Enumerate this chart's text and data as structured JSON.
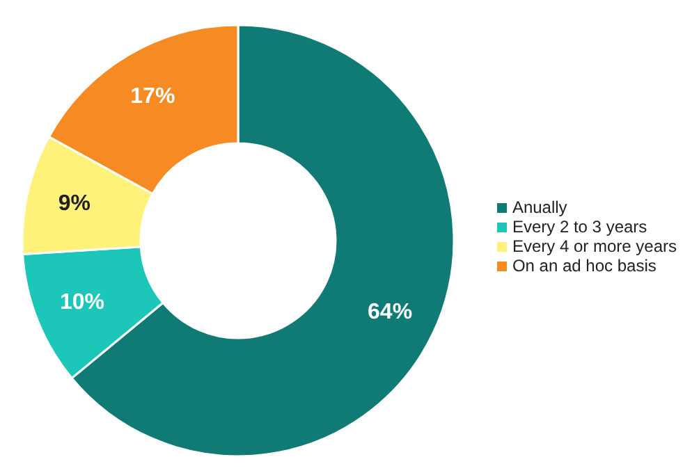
{
  "chart_data": {
    "type": "donut",
    "categories": [
      "Anually",
      "Every 2 to 3 years",
      "Every 4 or more years",
      "On an ad hoc basis"
    ],
    "values": [
      64,
      10,
      9,
      17
    ],
    "colors": [
      "#0f7b74",
      "#1cc6b9",
      "#fef27a",
      "#f58b22"
    ],
    "value_labels": [
      "64%",
      "10%",
      "9%",
      "17%"
    ],
    "legend": "right"
  }
}
